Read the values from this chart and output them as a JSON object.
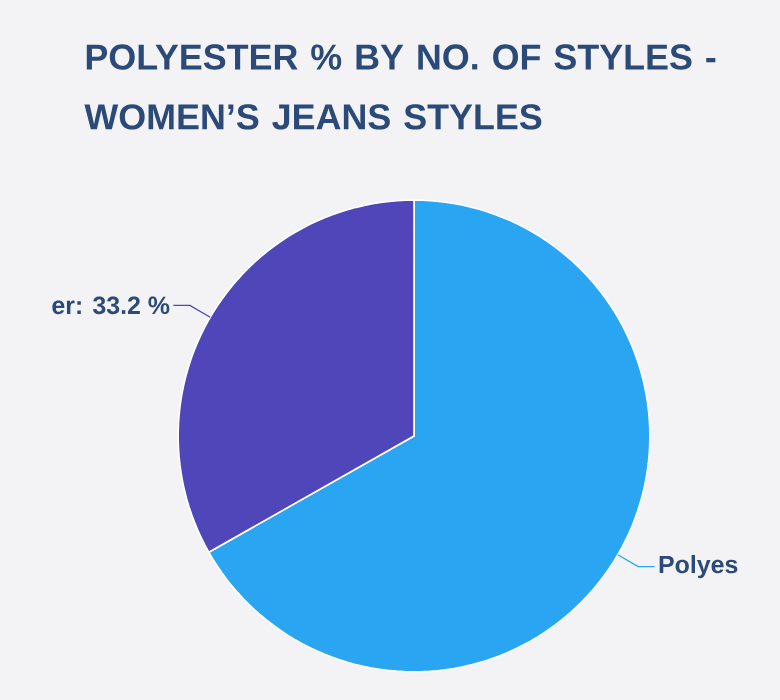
{
  "chart_data": {
    "type": "pie",
    "title": "POLYESTER % BY NO. OF STYLES - WOMEN’S JEANS STYLES",
    "categories": [
      "Polyes",
      "er: 33.2 %"
    ],
    "values": [
      66.8,
      33.2
    ],
    "colors": [
      "#2aa5f1",
      "#4f47b9"
    ]
  }
}
